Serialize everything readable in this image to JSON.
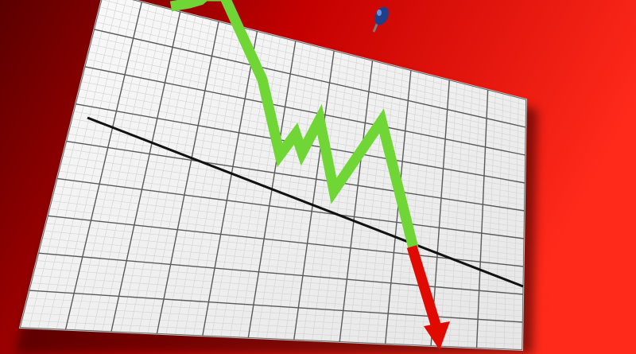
{
  "scene": {
    "subject": "",
    "colors": {
      "background_dark": "#5a0000",
      "background_mid": "#c40000",
      "background_light": "#ff2a1a",
      "board": "#f4f4f4",
      "board_shadow": "#2a0000",
      "minor_grid": "#d2d2d2",
      "major_grid": "#5a5a5a",
      "baseline": "#111111",
      "trend_up": "#6fd636",
      "trend_down": "#e00a00",
      "pin": "#1f3f8a"
    },
    "icons": [
      "pushpin-icon",
      "down-arrow-icon"
    ]
  }
}
